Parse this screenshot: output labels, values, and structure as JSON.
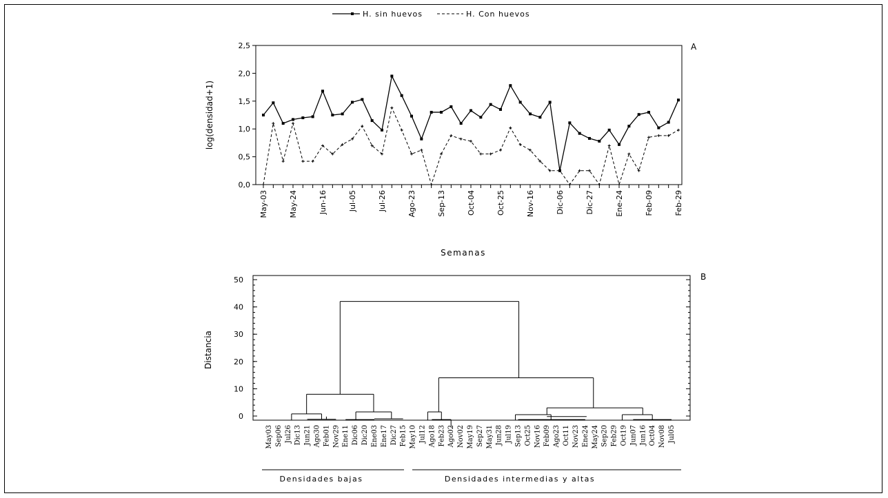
{
  "chart_data": [
    {
      "type": "line",
      "panel_label": "A",
      "ylabel": "log(densidad+1)",
      "xlabel": "Semanas",
      "ylim": [
        0,
        2.5
      ],
      "y_ticks": [
        "0,0",
        "0,5",
        "1,0",
        "1,5",
        "2,0",
        "2,5"
      ],
      "x_tick_labels": [
        "May-03",
        "May-24",
        "Jun-16",
        "Jul-05",
        "Jul-26",
        "Ago-23",
        "Sep-13",
        "Oct-04",
        "Oct-25",
        "Nov-16",
        "Dic-06",
        "Dic-27",
        "Ene-24",
        "Feb-09",
        "Feb-29"
      ],
      "legend": {
        "position": "top-center"
      },
      "series": [
        {
          "name": "H. sin huevos",
          "style": "solid",
          "marker": "square",
          "values": [
            1.25,
            1.47,
            1.1,
            1.17,
            1.2,
            1.22,
            1.68,
            1.25,
            1.27,
            1.48,
            1.53,
            1.15,
            0.98,
            1.95,
            1.6,
            1.23,
            0.82,
            1.3,
            1.3,
            1.4,
            1.1,
            1.33,
            1.21,
            1.44,
            1.35,
            1.78,
            1.48,
            1.27,
            1.21,
            1.48,
            0.25,
            1.11,
            0.92,
            0.83,
            0.78,
            0.98,
            0.72,
            1.05,
            1.26,
            1.3,
            1.02,
            1.12,
            1.52
          ]
        },
        {
          "name": "H. Con huevos",
          "style": "dashed",
          "marker": "plus",
          "values": [
            0.0,
            1.1,
            0.42,
            1.1,
            0.42,
            0.42,
            0.7,
            0.55,
            0.72,
            0.82,
            1.05,
            0.7,
            0.55,
            1.38,
            0.98,
            0.55,
            0.62,
            0.0,
            0.55,
            0.88,
            0.82,
            0.78,
            0.55,
            0.55,
            0.62,
            1.02,
            0.72,
            0.62,
            0.42,
            0.25,
            0.25,
            0.0,
            0.25,
            0.25,
            0.0,
            0.7,
            0.0,
            0.55,
            0.25,
            0.85,
            0.88,
            0.88,
            0.98
          ]
        }
      ]
    },
    {
      "type": "dendrogram",
      "panel_label": "B",
      "ylabel": "Distancia",
      "ylim": [
        -2,
        50
      ],
      "y_ticks": [
        "0",
        "10",
        "20",
        "30",
        "40",
        "50"
      ],
      "leaves": [
        "May03",
        "Sep06",
        "Jul26",
        "Dic13",
        "Jun21",
        "Ago30",
        "Feb01",
        "Nov29",
        "Ene11",
        "Dic06",
        "Dic20",
        "Ene03",
        "Ene17",
        "Dic27",
        "Feb15",
        "May10",
        "Jul12",
        "Ago18",
        "Feb23",
        "Ago02",
        "Nov02",
        "May19",
        "Sep27",
        "May31",
        "Jun28",
        "Jul19",
        "Sep13",
        "Oct25",
        "Nov16",
        "Feb09",
        "Ago23",
        "Oct11",
        "Nov23",
        "Ene24",
        "May24",
        "Sep20",
        "Feb29",
        "Oct19",
        "Jun07",
        "Jun16",
        "Oct04",
        "Nov08",
        "Jul05"
      ],
      "merges": [
        {
          "level": 42,
          "between": [
            "Densidades bajas",
            "Densidades intermedias y altas"
          ]
        },
        {
          "level": 14,
          "between": [
            "May10-Feb23 group",
            "Nov02-Jul05 group"
          ]
        },
        {
          "level": 8,
          "between": [
            "May03-Nov29 group",
            "Ene11-Feb15 group"
          ]
        },
        {
          "level": 3,
          "between": [
            "Nov02-Ene24 group",
            "May24-Jul05 group"
          ]
        },
        {
          "level": 1.5,
          "between": [
            "May10",
            "Ago18-Feb23 group"
          ]
        },
        {
          "level": 1.5,
          "between": [
            "Ene11",
            "Dic06-Feb15 group"
          ]
        }
      ],
      "groups": [
        {
          "label": "Densidades bajas"
        },
        {
          "label": "Densidades intermedias y altas"
        }
      ]
    }
  ]
}
